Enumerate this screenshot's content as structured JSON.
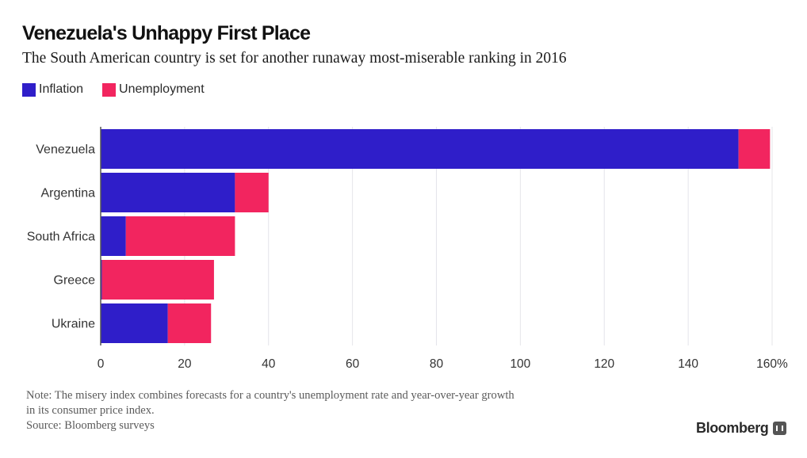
{
  "title": "Venezuela's Unhappy First Place",
  "subtitle": "The South American country is set for another runaway most-miserable ranking in 2016",
  "legend": [
    {
      "label": "Inflation",
      "color": "#2f1ec9"
    },
    {
      "label": "Unemployment",
      "color": "#f2255f"
    }
  ],
  "note": {
    "line1": "Note: The misery index combines forecasts for a country's unemployment rate and year-over-year growth",
    "line2": "in its consumer price index.",
    "line3": "Source: Bloomberg surveys"
  },
  "brand": {
    "label": "Bloomberg",
    "icon": "bloomberg-chart-icon"
  },
  "chart_data": {
    "type": "bar",
    "orientation": "horizontal",
    "stacked": true,
    "categories": [
      "Venezuela",
      "Argentina",
      "South Africa",
      "Greece",
      "Ukraine"
    ],
    "series": [
      {
        "name": "Inflation",
        "color": "#2f1ec9",
        "values": [
          152,
          32,
          6,
          0.3,
          16
        ]
      },
      {
        "name": "Unemployment",
        "color": "#f2255f",
        "values": [
          7.5,
          8,
          26,
          26.7,
          10.3
        ]
      }
    ],
    "xlim": [
      0,
      160
    ],
    "xticks": [
      "0",
      "20",
      "40",
      "60",
      "80",
      "100",
      "120",
      "140",
      "160%"
    ],
    "grid": true,
    "legend_position": "top-left"
  }
}
